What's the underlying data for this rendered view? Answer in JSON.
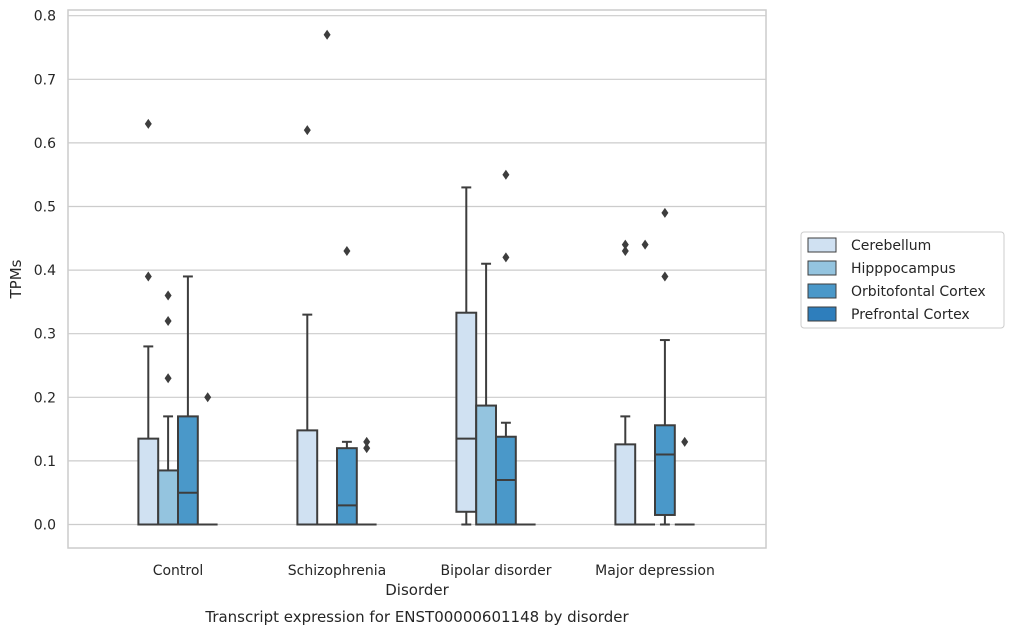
{
  "chart_data": {
    "type": "box",
    "title": "",
    "caption": "Transcript expression for ENST00000601148 by disorder",
    "xlabel": "Disorder",
    "ylabel": "TPMs",
    "ylim": [
      -0.04,
      0.81
    ],
    "yticks": [
      0.0,
      0.1,
      0.2,
      0.3,
      0.4,
      0.5,
      0.6,
      0.7,
      0.8
    ],
    "grid": "horizontal",
    "legend_position": "right",
    "categories": [
      "Control",
      "Schizophrenia",
      "Bipolar disorder",
      "Major depression"
    ],
    "series": [
      {
        "name": "Cerebellum",
        "color": "#d0e1f2",
        "boxes": [
          {
            "q1": 0.0,
            "median": 0.0,
            "q3": 0.135,
            "whisker_low": 0.0,
            "whisker_high": 0.28,
            "outliers": [
              0.39,
              0.63
            ]
          },
          {
            "q1": 0.0,
            "median": 0.0,
            "q3": 0.148,
            "whisker_low": 0.0,
            "whisker_high": 0.33,
            "outliers": [
              0.62
            ]
          },
          {
            "q1": 0.02,
            "median": 0.135,
            "q3": 0.333,
            "whisker_low": 0.0,
            "whisker_high": 0.53,
            "outliers": []
          },
          {
            "q1": 0.0,
            "median": 0.0,
            "q3": 0.126,
            "whisker_low": 0.0,
            "whisker_high": 0.17,
            "outliers": [
              0.43,
              0.44
            ]
          }
        ]
      },
      {
        "name": "Hipppocampus",
        "color": "#94c4df",
        "boxes": [
          {
            "q1": 0.0,
            "median": 0.0,
            "q3": 0.085,
            "whisker_low": 0.0,
            "whisker_high": 0.17,
            "outliers": [
              0.23,
              0.32,
              0.36
            ]
          },
          {
            "q1": 0.0,
            "median": 0.0,
            "q3": 0.0,
            "whisker_low": 0.0,
            "whisker_high": 0.0,
            "outliers": [
              0.77
            ]
          },
          {
            "q1": 0.0,
            "median": 0.0,
            "q3": 0.187,
            "whisker_low": 0.0,
            "whisker_high": 0.41,
            "outliers": []
          },
          {
            "q1": 0.0,
            "median": 0.0,
            "q3": 0.0,
            "whisker_low": 0.0,
            "whisker_high": 0.0,
            "outliers": [
              0.44
            ]
          }
        ]
      },
      {
        "name": "Orbitofontal Cortex",
        "color": "#4a98c9",
        "boxes": [
          {
            "q1": 0.0,
            "median": 0.05,
            "q3": 0.17,
            "whisker_low": 0.0,
            "whisker_high": 0.39,
            "outliers": []
          },
          {
            "q1": 0.0,
            "median": 0.03,
            "q3": 0.12,
            "whisker_low": 0.0,
            "whisker_high": 0.13,
            "outliers": [
              0.43
            ]
          },
          {
            "q1": 0.0,
            "median": 0.07,
            "q3": 0.138,
            "whisker_low": 0.0,
            "whisker_high": 0.16,
            "outliers": [
              0.42,
              0.55
            ]
          },
          {
            "q1": 0.015,
            "median": 0.11,
            "q3": 0.156,
            "whisker_low": 0.0,
            "whisker_high": 0.29,
            "outliers": [
              0.39,
              0.49
            ]
          }
        ]
      },
      {
        "name": "Prefrontal Cortex",
        "color": "#2e7ebc",
        "boxes": [
          {
            "q1": 0.0,
            "median": 0.0,
            "q3": 0.0,
            "whisker_low": 0.0,
            "whisker_high": 0.0,
            "outliers": [
              0.2
            ]
          },
          {
            "q1": 0.0,
            "median": 0.0,
            "q3": 0.0,
            "whisker_low": 0.0,
            "whisker_high": 0.0,
            "outliers": [
              0.12,
              0.13
            ]
          },
          {
            "q1": 0.0,
            "median": 0.0,
            "q3": 0.0,
            "whisker_low": 0.0,
            "whisker_high": 0.0,
            "outliers": []
          },
          {
            "q1": 0.0,
            "median": 0.0,
            "q3": 0.0,
            "whisker_low": 0.0,
            "whisker_high": 0.0,
            "outliers": [
              0.13
            ]
          }
        ]
      }
    ]
  }
}
